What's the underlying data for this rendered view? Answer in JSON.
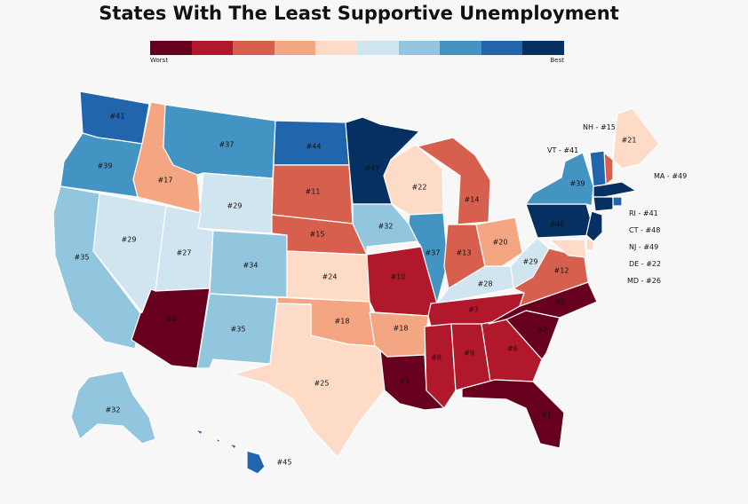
{
  "title": "States With The Least Supportive Unemployment",
  "legend": {
    "worst_label": "Worst",
    "best_label": "Best",
    "colors": [
      "#67001f",
      "#b2182b",
      "#d6604d",
      "#f4a582",
      "#fddbc7",
      "#d1e5f0",
      "#92c5de",
      "#4393c3",
      "#2166ac",
      "#053061"
    ]
  },
  "states": [
    {
      "id": "WA",
      "rank": "#41",
      "color": "#2166ac"
    },
    {
      "id": "OR",
      "rank": "#39",
      "color": "#4393c3"
    },
    {
      "id": "CA",
      "rank": "#35",
      "color": "#92c5de"
    },
    {
      "id": "NV",
      "rank": "#29",
      "color": "#d1e5f0"
    },
    {
      "id": "ID",
      "rank": "#17",
      "color": "#f4a582"
    },
    {
      "id": "MT",
      "rank": "#37",
      "color": "#4393c3"
    },
    {
      "id": "WY",
      "rank": "#29",
      "color": "#d1e5f0"
    },
    {
      "id": "UT",
      "rank": "#27",
      "color": "#d1e5f0"
    },
    {
      "id": "AZ",
      "rank": "#4",
      "color": "#67001f"
    },
    {
      "id": "CO",
      "rank": "#34",
      "color": "#92c5de"
    },
    {
      "id": "NM",
      "rank": "#35",
      "color": "#92c5de"
    },
    {
      "id": "ND",
      "rank": "#44",
      "color": "#2166ac"
    },
    {
      "id": "SD",
      "rank": "#11",
      "color": "#d6604d"
    },
    {
      "id": "NE",
      "rank": "#15",
      "color": "#d6604d"
    },
    {
      "id": "KS",
      "rank": "#24",
      "color": "#fddbc7"
    },
    {
      "id": "OK",
      "rank": "#18",
      "color": "#f4a582"
    },
    {
      "id": "TX",
      "rank": "#25",
      "color": "#fddbc7"
    },
    {
      "id": "MN",
      "rank": "#47",
      "color": "#053061"
    },
    {
      "id": "IA",
      "rank": "#32",
      "color": "#92c5de"
    },
    {
      "id": "MO",
      "rank": "#10",
      "color": "#b2182b"
    },
    {
      "id": "AR",
      "rank": "#18",
      "color": "#f4a582"
    },
    {
      "id": "LA",
      "rank": "#3",
      "color": "#67001f"
    },
    {
      "id": "WI",
      "rank": "#22",
      "color": "#fddbc7"
    },
    {
      "id": "IL",
      "rank": "#37",
      "color": "#4393c3"
    },
    {
      "id": "MI",
      "rank": "#14",
      "color": "#d6604d"
    },
    {
      "id": "IN",
      "rank": "#13",
      "color": "#d6604d"
    },
    {
      "id": "OH",
      "rank": "#20",
      "color": "#f4a582"
    },
    {
      "id": "KY",
      "rank": "#28",
      "color": "#d1e5f0"
    },
    {
      "id": "TN",
      "rank": "#7",
      "color": "#b2182b"
    },
    {
      "id": "MS",
      "rank": "#8",
      "color": "#b2182b"
    },
    {
      "id": "AL",
      "rank": "#9",
      "color": "#b2182b"
    },
    {
      "id": "GA",
      "rank": "#6",
      "color": "#b2182b"
    },
    {
      "id": "FL",
      "rank": "#1",
      "color": "#67001f"
    },
    {
      "id": "SC",
      "rank": "#2",
      "color": "#67001f"
    },
    {
      "id": "NC",
      "rank": "#5",
      "color": "#67001f"
    },
    {
      "id": "VA",
      "rank": "#12",
      "color": "#d6604d"
    },
    {
      "id": "WV",
      "rank": "#29",
      "color": "#d1e5f0"
    },
    {
      "id": "PA",
      "rank": "#46",
      "color": "#053061"
    },
    {
      "id": "NY",
      "rank": "#39",
      "color": "#4393c3"
    },
    {
      "id": "ME",
      "rank": "#21",
      "color": "#fddbc7"
    },
    {
      "id": "NH",
      "rank": "#15",
      "color": "#d6604d"
    },
    {
      "id": "VT",
      "rank": "#41",
      "color": "#2166ac"
    },
    {
      "id": "MA",
      "rank": "#49",
      "color": "#053061"
    },
    {
      "id": "RI",
      "rank": "#41",
      "color": "#2166ac"
    },
    {
      "id": "CT",
      "rank": "#48",
      "color": "#053061"
    },
    {
      "id": "NJ",
      "rank": "#49",
      "color": "#053061"
    },
    {
      "id": "DE",
      "rank": "#22",
      "color": "#fddbc7"
    },
    {
      "id": "MD",
      "rank": "#26",
      "color": "#fddbc7"
    },
    {
      "id": "AK",
      "rank": "#32",
      "color": "#92c5de"
    },
    {
      "id": "HI",
      "rank": "#45",
      "color": "#2166ac"
    }
  ],
  "external_labels": {
    "NH": "NH - #15",
    "VT": "VT - #41",
    "MA": "MA - #49",
    "RI": "RI - #41",
    "CT": "CT - #48",
    "NJ": "NJ - #49",
    "DE": "DE - #22",
    "MD": "MD - #26"
  }
}
